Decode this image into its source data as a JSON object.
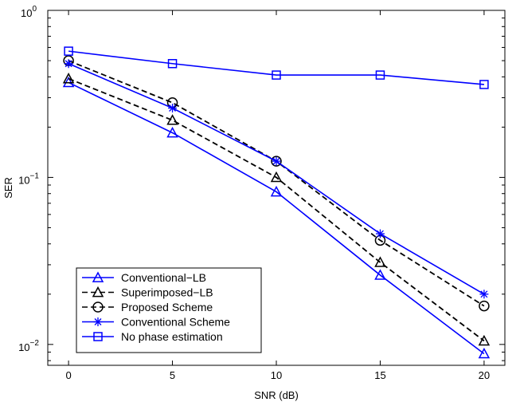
{
  "chart_data": {
    "type": "line",
    "title": "",
    "xlabel": "SNR (dB)",
    "ylabel": "SER",
    "x": [
      0,
      5,
      10,
      15,
      20
    ],
    "x_ticks": [
      0,
      5,
      10,
      15,
      20
    ],
    "xlim": [
      -1,
      21
    ],
    "ylim": [
      0.0075,
      1
    ],
    "y_scale": "log",
    "y_ticks": [
      {
        "value": 0.01,
        "base": "10",
        "exp": "−2"
      },
      {
        "value": 0.1,
        "base": "10",
        "exp": "−1"
      },
      {
        "value": 1,
        "base": "10",
        "exp": "0"
      }
    ],
    "grid": false,
    "legend_position": "bottom-left",
    "series": [
      {
        "name": "Conventional−LB",
        "values": [
          0.37,
          0.185,
          0.082,
          0.026,
          0.0088
        ],
        "color": "#0000ff",
        "line": "solid",
        "marker": "triangle"
      },
      {
        "name": "Superimposed−LB",
        "values": [
          0.39,
          0.22,
          0.1,
          0.031,
          0.0105
        ],
        "color": "#000000",
        "line": "dashed",
        "marker": "triangle"
      },
      {
        "name": "Proposed Scheme",
        "values": [
          0.5,
          0.28,
          0.125,
          0.042,
          0.017
        ],
        "color": "#000000",
        "line": "dashed",
        "marker": "circle"
      },
      {
        "name": "Conventional Scheme",
        "values": [
          0.48,
          0.26,
          0.125,
          0.046,
          0.02
        ],
        "color": "#0000ff",
        "line": "solid",
        "marker": "star"
      },
      {
        "name": "No phase estimation",
        "values": [
          0.57,
          0.48,
          0.41,
          0.41,
          0.36
        ],
        "color": "#0000ff",
        "line": "solid",
        "marker": "square"
      }
    ]
  }
}
